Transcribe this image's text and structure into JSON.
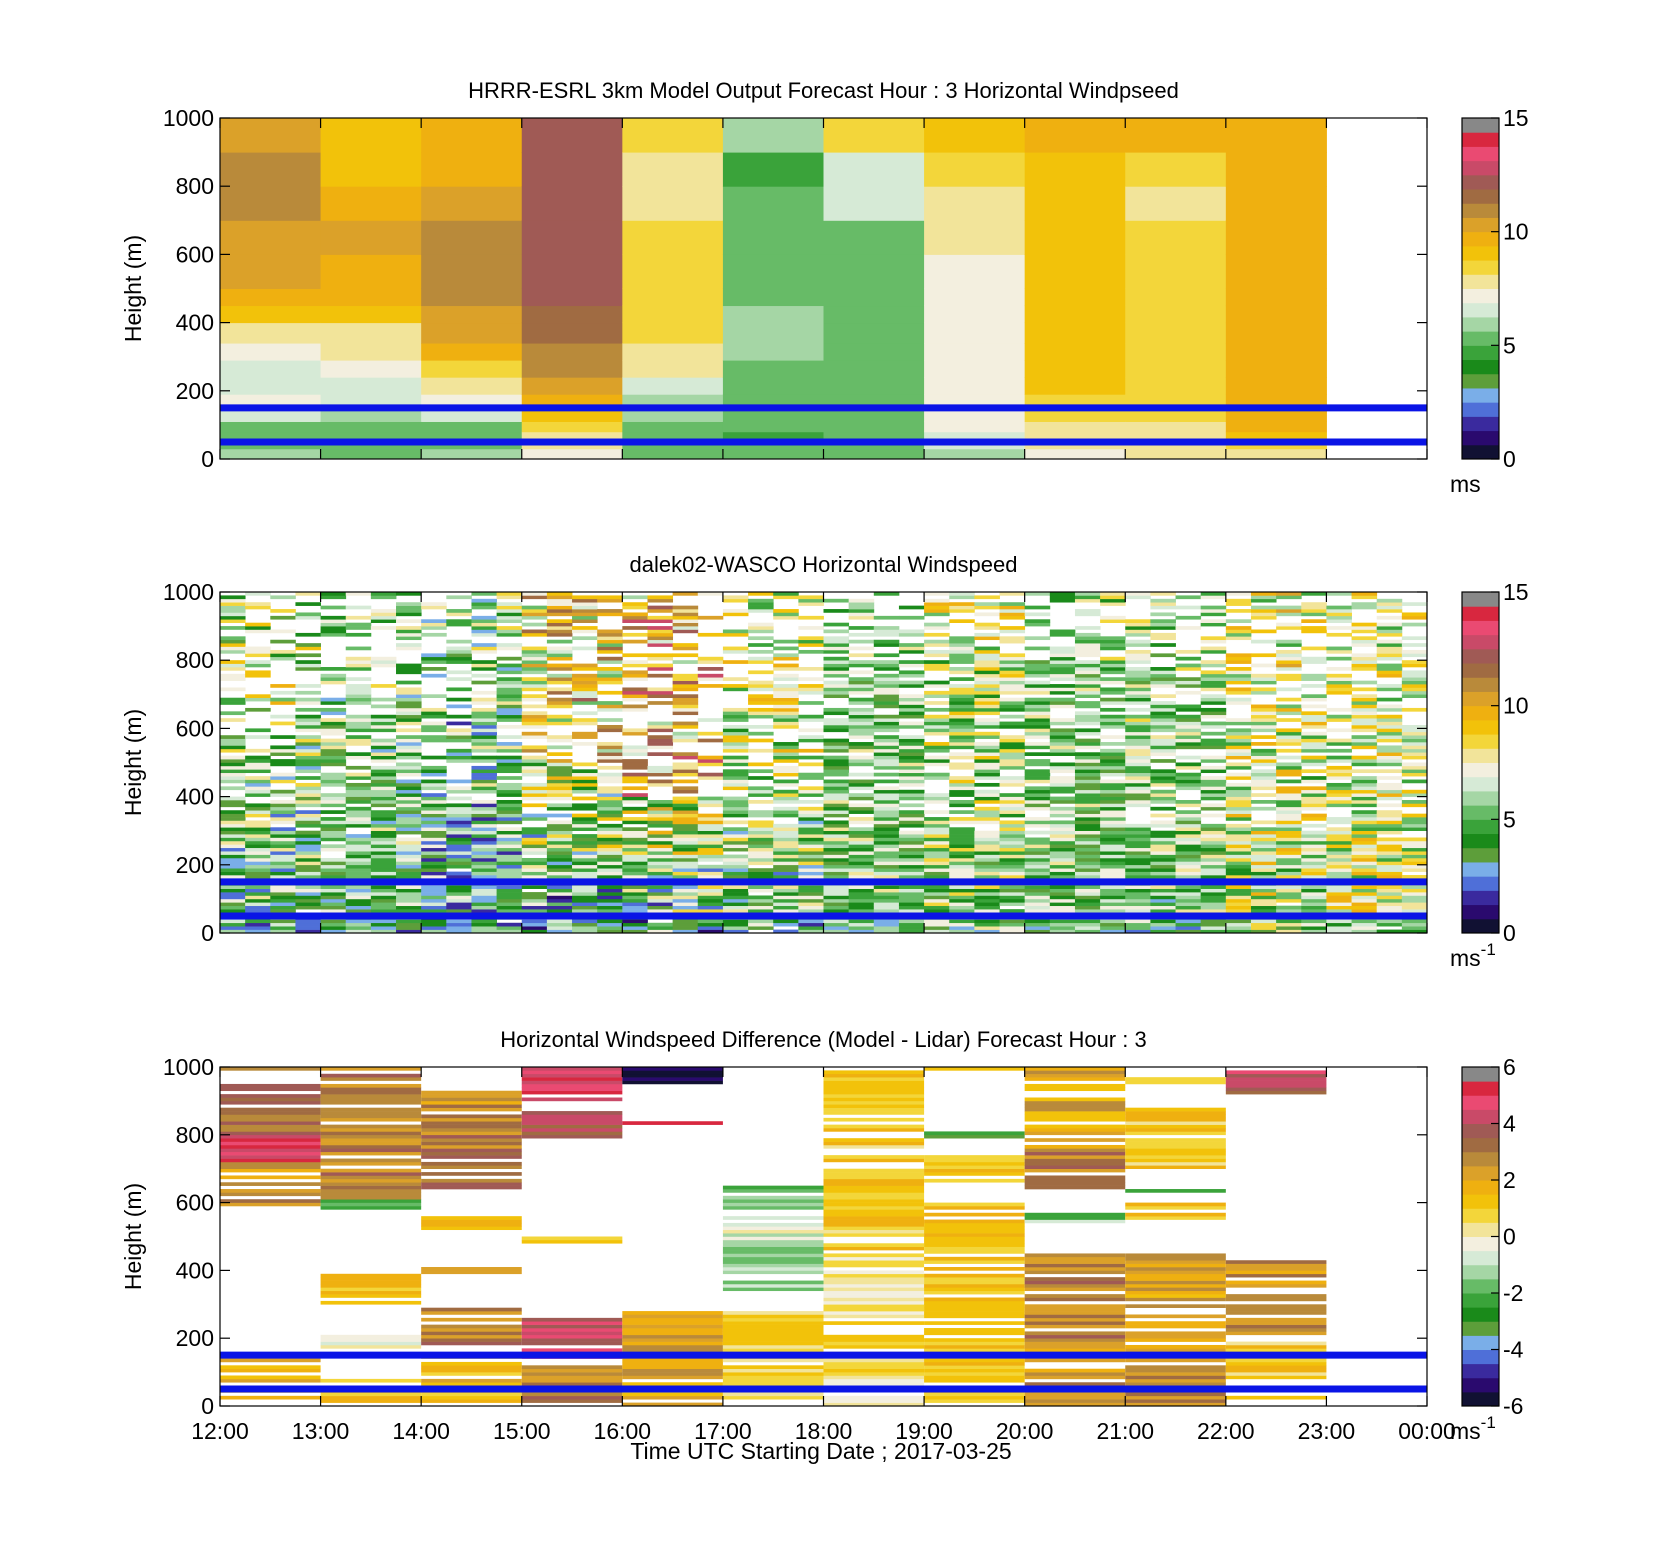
{
  "figure": {
    "xlabel": "Time UTC  Starting Date ; 2017-03-25",
    "x_ticks": [
      "12:00",
      "13:00",
      "14:00",
      "15:00",
      "16:00",
      "17:00",
      "18:00",
      "19:00",
      "20:00",
      "21:00",
      "22:00",
      "23:00",
      "00:00"
    ]
  },
  "colormaps": {
    "speed": [
      "#111133",
      "#2a0a6e",
      "#3a2a9e",
      "#4f6fd8",
      "#7aaee8",
      "#5d9e3a",
      "#1a8a1a",
      "#3aa33a",
      "#67bb67",
      "#a5d6a5",
      "#d6ead6",
      "#f3efdf",
      "#f2e49a",
      "#f3d63a",
      "#f2c20a",
      "#efb010",
      "#dba129",
      "#b98a3a",
      "#a06b42",
      "#a05a55",
      "#c94a68",
      "#ea4a72",
      "#d8273f",
      "#888888"
    ],
    "difference": [
      "#111133",
      "#2a0a6e",
      "#3a2a9e",
      "#4f6fd8",
      "#7aaee8",
      "#5d9e3a",
      "#1a8a1a",
      "#3aa33a",
      "#67bb67",
      "#a5d6a5",
      "#d6ead6",
      "#f3efdf",
      "#f2e49a",
      "#f3d63a",
      "#f2c20a",
      "#efb010",
      "#dba129",
      "#b98a3a",
      "#a06b42",
      "#a05a55",
      "#c94a68",
      "#ea4a72",
      "#d8273f",
      "#888888"
    ]
  },
  "panels": [
    {
      "title": "HRRR-ESRL 3km Model Output   Forecast Hour : 3 Horizontal Windpseed",
      "ylabel": "Height (m)",
      "colorbar_label": "ms",
      "colorbar_superscript": "",
      "colorbar_ticks": [
        "0",
        "5",
        "10",
        "15"
      ],
      "colorbar_range": [
        0,
        15
      ],
      "reference_heights": [
        150,
        50
      ],
      "chart_data": {
        "type": "heatmap",
        "x": [
          "12:00",
          "13:00",
          "14:00",
          "15:00",
          "16:00",
          "17:00",
          "18:00",
          "19:00",
          "20:00",
          "21:00",
          "22:00",
          "23:00",
          "00:00"
        ],
        "ylim": [
          0,
          1000
        ],
        "height_levels": [
          0,
          30,
          50,
          80,
          110,
          150,
          190,
          240,
          290,
          340,
          400,
          450,
          500,
          600,
          700,
          800,
          900,
          1000
        ],
        "columns": [
          {
            "time": "12:00",
            "values": [
              5.8,
              5.5,
              5.2,
              5.6,
              6.5,
              7.0,
              6.8,
              6.5,
              7.4,
              7.9,
              9.2,
              9.8,
              10.0,
              10.4,
              11.0,
              10.8,
              10.0
            ]
          },
          {
            "time": "13:00",
            "values": [
              5.6,
              5.2,
              5.0,
              5.3,
              6.0,
              6.6,
              6.8,
              7.3,
              7.6,
              8.0,
              9.0,
              9.7,
              9.8,
              10.2,
              9.5,
              9.3,
              9.3
            ]
          },
          {
            "time": "14:00",
            "values": [
              5.7,
              5.3,
              5.2,
              5.6,
              6.5,
              7.0,
              7.5,
              8.2,
              9.5,
              10.0,
              10.5,
              10.8,
              11.0,
              11.0,
              10.6,
              9.8,
              9.6
            ]
          },
          {
            "time": "15:00",
            "values": [
              7.2,
              7.5,
              7.8,
              8.6,
              9.3,
              9.9,
              10.4,
              10.7,
              11.0,
              11.5,
              11.8,
              12.0,
              12.0,
              12.0,
              12.0,
              12.0,
              12.0
            ]
          },
          {
            "time": "16:00",
            "values": [
              5.2,
              5.0,
              5.0,
              5.3,
              5.7,
              6.0,
              6.3,
              7.5,
              8.0,
              8.3,
              8.3,
              8.3,
              8.3,
              8.2,
              8.1,
              7.6,
              8.4
            ]
          },
          {
            "time": "17:00",
            "values": [
              5.3,
              5.0,
              4.9,
              5.1,
              5.2,
              5.3,
              5.4,
              5.5,
              5.7,
              5.8,
              5.7,
              5.6,
              5.5,
              5.3,
              5.0,
              4.8,
              5.7
            ]
          },
          {
            "time": "18:00",
            "values": [
              5.6,
              5.3,
              5.2,
              5.2,
              5.3,
              5.4,
              5.5,
              5.6,
              5.5,
              5.4,
              5.3,
              5.3,
              5.3,
              5.6,
              6.3,
              6.8,
              8.6
            ]
          },
          {
            "time": "19:00",
            "values": [
              6.2,
              6.5,
              6.8,
              7.1,
              7.3,
              7.4,
              7.4,
              7.4,
              7.4,
              7.4,
              7.4,
              7.4,
              7.4,
              7.5,
              8.0,
              8.6,
              9.3
            ]
          },
          {
            "time": "20:00",
            "values": [
              7.4,
              7.5,
              7.7,
              8.0,
              8.2,
              8.6,
              8.8,
              9.0,
              9.1,
              9.1,
              9.1,
              9.1,
              9.1,
              9.2,
              9.3,
              9.3,
              9.5
            ]
          },
          {
            "time": "21:00",
            "values": [
              7.5,
              7.5,
              7.8,
              8.0,
              8.2,
              8.4,
              8.5,
              8.5,
              8.6,
              8.6,
              8.6,
              8.5,
              8.5,
              8.3,
              8.0,
              8.5,
              9.5
            ]
          },
          {
            "time": "22:00",
            "values": [
              7.8,
              8.5,
              9.0,
              9.4,
              9.6,
              9.8,
              9.8,
              9.8,
              9.8,
              9.8,
              9.8,
              9.8,
              9.8,
              9.8,
              9.8,
              9.8,
              9.9
            ]
          }
        ]
      }
    },
    {
      "title": "dalek02-WASCO  Horizontal Windspeed",
      "ylabel": "Height (m)",
      "colorbar_label": "ms",
      "colorbar_superscript": "-1",
      "colorbar_ticks": [
        "0",
        "5",
        "10",
        "15"
      ],
      "colorbar_range": [
        0,
        15
      ],
      "reference_heights": [
        150,
        50
      ],
      "chart_data": {
        "type": "heatmap",
        "x": [
          "12:00",
          "13:00",
          "14:00",
          "15:00",
          "16:00",
          "17:00",
          "18:00",
          "19:00",
          "20:00",
          "21:00",
          "22:00",
          "23:00",
          "00:00"
        ],
        "ylim": [
          0,
          1000
        ],
        "time_resolution_minutes": 15,
        "hourly_profiles": [
          {
            "time": "12:00",
            "surface": 4.8,
            "boundary_layer_top": 600,
            "aloft": 6.5,
            "variability": 3.0
          },
          {
            "time": "13:00",
            "surface": 5.0,
            "boundary_layer_top": 700,
            "aloft": 6.0,
            "variability": 2.5
          },
          {
            "time": "14:00",
            "surface": 4.2,
            "boundary_layer_top": 650,
            "aloft": 5.5,
            "variability": 3.0
          },
          {
            "time": "15:00",
            "surface": 4.6,
            "boundary_layer_top": 500,
            "aloft": 8.5,
            "variability": 3.5
          },
          {
            "time": "16:00",
            "surface": 5.0,
            "boundary_layer_top": 400,
            "aloft": 9.5,
            "variability": 3.5
          },
          {
            "time": "17:00",
            "surface": 5.2,
            "boundary_layer_top": 450,
            "aloft": 7.0,
            "variability": 2.8
          },
          {
            "time": "18:00",
            "surface": 5.5,
            "boundary_layer_top": 800,
            "aloft": 5.5,
            "variability": 2.2
          },
          {
            "time": "19:00",
            "surface": 6.0,
            "boundary_layer_top": 850,
            "aloft": 7.5,
            "variability": 2.5
          },
          {
            "time": "20:00",
            "surface": 5.3,
            "boundary_layer_top": 800,
            "aloft": 6.0,
            "variability": 2.2
          },
          {
            "time": "21:00",
            "surface": 5.5,
            "boundary_layer_top": 750,
            "aloft": 6.0,
            "variability": 2.5
          },
          {
            "time": "22:00",
            "surface": 6.8,
            "boundary_layer_top": 600,
            "aloft": 7.5,
            "variability": 2.8
          },
          {
            "time": "23:00",
            "surface": 7.2,
            "boundary_layer_top": 550,
            "aloft": 7.0,
            "variability": 2.5
          }
        ]
      }
    },
    {
      "title": "Horizontal Windspeed Difference (Model - Lidar) Forecast Hour : 3",
      "ylabel": "Height (m)",
      "colorbar_label": "ms",
      "colorbar_superscript": "-1",
      "colorbar_ticks": [
        "-6",
        "-4",
        "-2",
        "0",
        "2",
        "4",
        "6"
      ],
      "colorbar_range": [
        -6,
        6
      ],
      "reference_heights": [
        150,
        50
      ],
      "chart_data": {
        "type": "heatmap",
        "x": [
          "12:00",
          "13:00",
          "14:00",
          "15:00",
          "16:00",
          "17:00",
          "18:00",
          "19:00",
          "20:00",
          "21:00",
          "22:00",
          "23:00",
          "00:00"
        ],
        "ylim": [
          0,
          1000
        ],
        "columns": [
          {
            "time": "12:00",
            "segments": [
              [
                20,
                140,
                2.0
              ],
              [
                590,
                720,
                2.5
              ],
              [
                720,
                800,
                4.8
              ],
              [
                800,
                1000,
                3.0
              ]
            ]
          },
          {
            "time": "13:00",
            "segments": [
              [
                10,
                80,
                1.0
              ],
              [
                160,
                210,
                -0.3
              ],
              [
                300,
                400,
                1.2
              ],
              [
                580,
                610,
                -1.5
              ],
              [
                610,
                1000,
                2.8
              ]
            ]
          },
          {
            "time": "14:00",
            "segments": [
              [
                10,
                150,
                1.5
              ],
              [
                170,
                300,
                2.8
              ],
              [
                380,
                420,
                2.5
              ],
              [
                520,
                560,
                1.2
              ],
              [
                640,
                800,
                3.2
              ],
              [
                800,
                930,
                2.5
              ]
            ]
          },
          {
            "time": "15:00",
            "segments": [
              [
                0,
                130,
                3.0
              ],
              [
                130,
                290,
                4.2
              ],
              [
                480,
                500,
                0.5
              ],
              [
                790,
                870,
                4.0
              ],
              [
                900,
                1000,
                4.5
              ]
            ]
          },
          {
            "time": "16:00",
            "segments": [
              [
                0,
                80,
                1.5
              ],
              [
                80,
                290,
                2.2
              ],
              [
                830,
                860,
                6.0
              ],
              [
                950,
                1000,
                -5.5
              ]
            ]
          },
          {
            "time": "17:00",
            "segments": [
              [
                0,
                100,
                0.5
              ],
              [
                100,
                290,
                0.8
              ],
              [
                340,
                480,
                -1.2
              ],
              [
                480,
                560,
                -0.4
              ],
              [
                580,
                650,
                -1.8
              ]
            ]
          },
          {
            "time": "18:00",
            "segments": [
              [
                0,
                100,
                0.3
              ],
              [
                100,
                300,
                0.5
              ],
              [
                300,
                450,
                0.2
              ],
              [
                450,
                780,
                1.0
              ],
              [
                780,
                1000,
                1.3
              ]
            ]
          },
          {
            "time": "19:00",
            "segments": [
              [
                0,
                150,
                1.0
              ],
              [
                150,
                600,
                1.2
              ],
              [
                660,
                740,
                1.2
              ],
              [
                790,
                810,
                -3.0
              ],
              [
                990,
                1000,
                2.0
              ]
            ]
          },
          {
            "time": "20:00",
            "segments": [
              [
                0,
                80,
                2.5
              ],
              [
                80,
                200,
                2.3
              ],
              [
                200,
                450,
                2.8
              ],
              [
                540,
                580,
                -1.5
              ],
              [
                640,
                760,
                3.0
              ],
              [
                760,
                1000,
                2.0
              ]
            ]
          },
          {
            "time": "21:00",
            "segments": [
              [
                0,
                100,
                2.5
              ],
              [
                100,
                450,
                2.2
              ],
              [
                550,
                600,
                1.2
              ],
              [
                620,
                650,
                -1.5
              ],
              [
                700,
                880,
                1.0
              ],
              [
                950,
                970,
                1.0
              ]
            ]
          },
          {
            "time": "22:00",
            "segments": [
              [
                0,
                200,
                1.2
              ],
              [
                200,
                430,
                2.5
              ],
              [
                920,
                990,
                4.0
              ]
            ]
          }
        ]
      }
    }
  ]
}
